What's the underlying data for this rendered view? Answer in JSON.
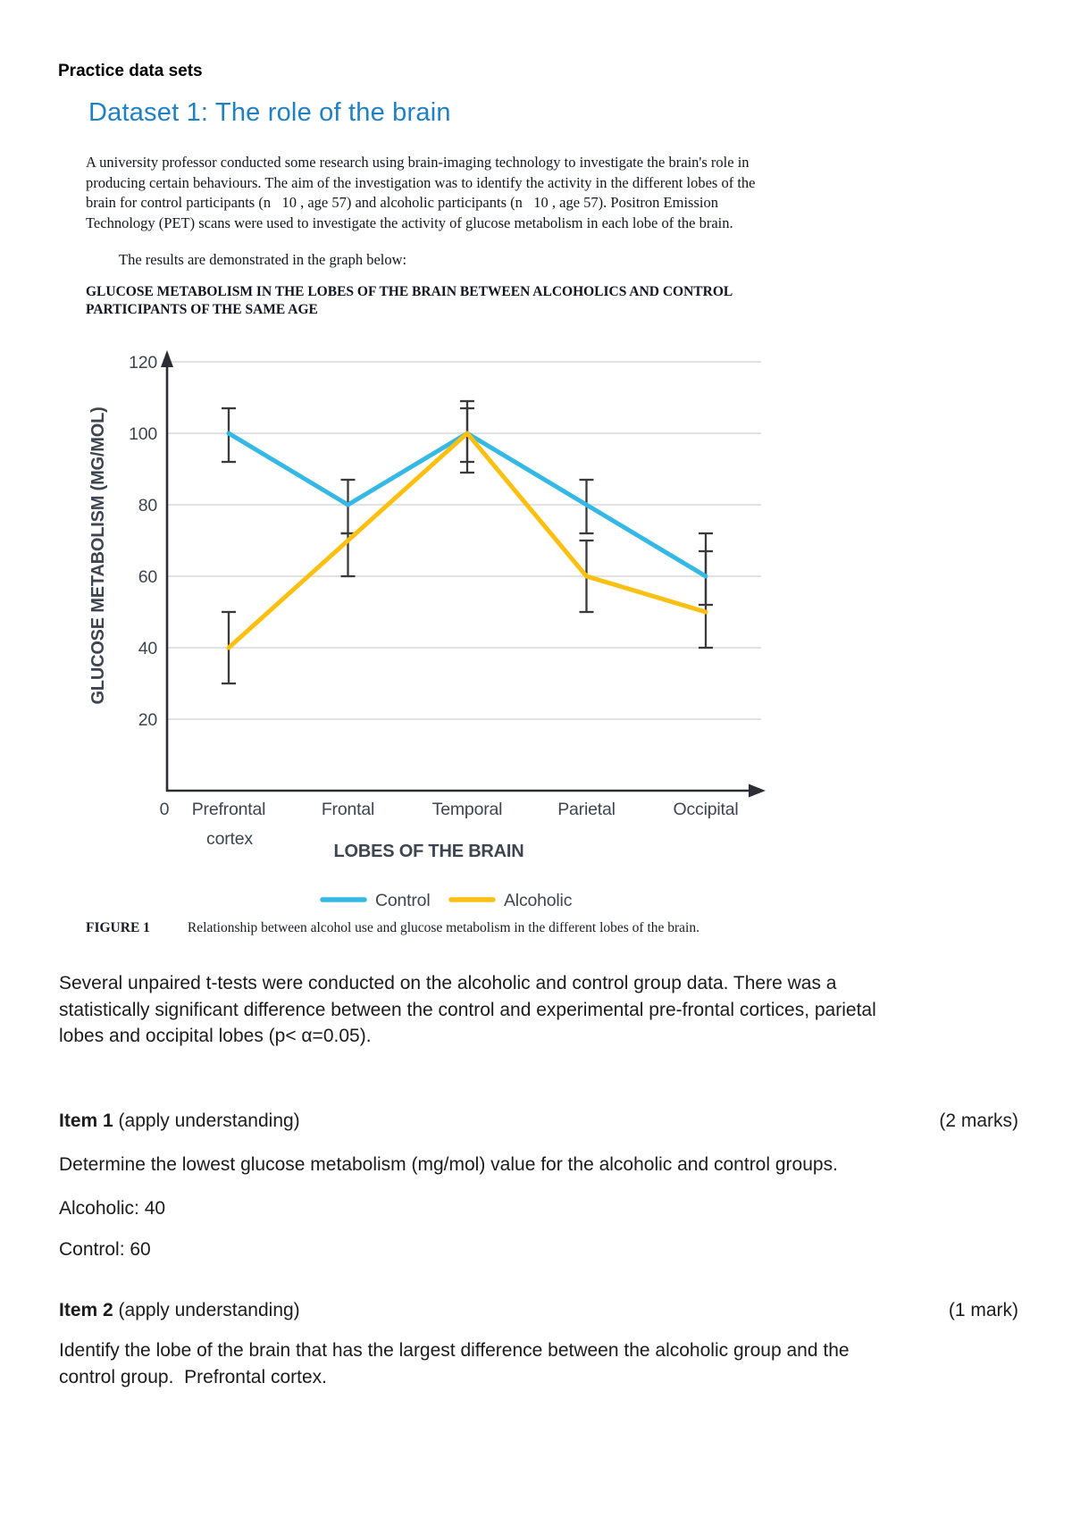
{
  "page": {
    "kicker": "Practice data sets",
    "title": "Dataset 1: The role of the brain",
    "intro_lines": [
      "A university professor conducted some research using brain-imaging technology to investigate the brain's role in",
      "producing certain behaviours. The aim of the investigation was to identify the activity in the different lobes of the",
      "brain for control participants (n   10 , age 57) and alcoholic participants (n   10 , age 57). Positron Emission",
      "Technology (PET) scans were used to investigate the activity of glucose metabolism in each lobe of the brain."
    ],
    "results_line": "The results are demonstrated in the graph below:",
    "chart_title_lines": [
      "GLUCOSE METABOLISM IN THE LOBES OF THE BRAIN BETWEEN ALCOHOLICS AND CONTROL",
      "PARTICIPANTS OF THE SAME AGE"
    ],
    "figure_label": "FIGURE 1",
    "figure_caption": "Relationship between alcohol use and glucose metabolism in the different lobes of the brain.",
    "analysis_lines": [
      "Several unpaired t-tests were conducted on the alcoholic and control group data. There was a",
      "statistically significant difference between the control and experimental pre-frontal cortices, parietal",
      "lobes and occipital lobes (p< α=0.05)."
    ],
    "items": [
      {
        "label": "Item 1",
        "suffix": "(apply understanding)",
        "marks": "(2 marks)",
        "body_lines": [
          "Determine the lowest glucose metabolism (mg/mol) value for the alcoholic and control groups."
        ],
        "answers": [
          "Alcoholic: 40",
          "Control: 60"
        ]
      },
      {
        "label": "Item 2",
        "suffix": "(apply understanding)",
        "marks": "(1 mark)",
        "body_lines": [
          "Identify the lobe of the brain that has the largest difference between the alcoholic group and the",
          "control group.  Prefrontal cortex."
        ],
        "answers": []
      }
    ]
  },
  "chart_data": {
    "type": "line",
    "title": "GLUCOSE METABOLISM IN THE LOBES OF THE BRAIN BETWEEN ALCOHOLICS AND CONTROL PARTICIPANTS OF THE SAME AGE",
    "xlabel": "LOBES OF THE BRAIN",
    "ylabel": "GLUCOSE METABOLISM (MG/MOL)",
    "categories": [
      "Prefrontal cortex",
      "Frontal",
      "Temporal",
      "Parietal",
      "Occipital"
    ],
    "ylim": [
      0,
      120
    ],
    "yticks": [
      0,
      20,
      40,
      60,
      80,
      100,
      120
    ],
    "grid": true,
    "legend_position": "bottom",
    "error_bars": true,
    "series": [
      {
        "name": "Control",
        "color": "#35b8e3",
        "values": [
          100,
          80,
          100,
          80,
          60
        ],
        "error_low": [
          92,
          72,
          92,
          72,
          52
        ],
        "error_high": [
          107,
          87,
          107,
          87,
          72
        ]
      },
      {
        "name": "Alcoholic",
        "color": "#fcc013",
        "values": [
          40,
          70,
          100,
          60,
          50
        ],
        "error_low": [
          30,
          60,
          89,
          50,
          40
        ],
        "error_high": [
          50,
          72,
          109,
          70,
          67
        ]
      }
    ]
  },
  "colors": {
    "accent_title": "#1f80c4",
    "axis_text": "#3e4450",
    "axis_line": "#2b2e34",
    "grid": "#d9d9d9",
    "error_bar": "#3a3a3a",
    "control": "#35b8e3",
    "alcoholic": "#fcc013"
  }
}
